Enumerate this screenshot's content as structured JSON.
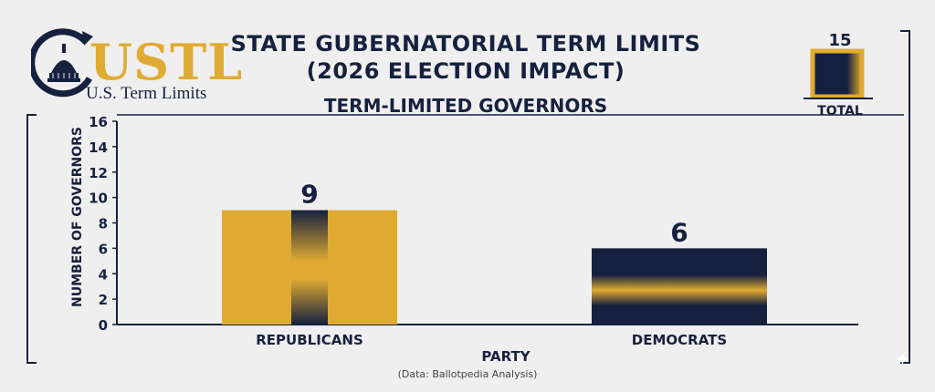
{
  "brand": {
    "logo_text": "USTL",
    "logo_subtitle": "U.S. Term Limits",
    "colors": {
      "gold": "#e0ab33",
      "navy": "#16213f"
    }
  },
  "titles": {
    "line1": "STATE GUBERNATORIAL TERM LIMITS",
    "line2": "(2026 ELECTION IMPACT)",
    "line3": "TERM-LIMITED GOVERNORS"
  },
  "total": {
    "label": "TOTAL",
    "value": 15
  },
  "chart_data": {
    "type": "bar",
    "title": "TERM-LIMITED GOVERNORS",
    "categories": [
      "REPUBLICANS",
      "DEMOCRATS"
    ],
    "values": [
      9,
      6
    ],
    "value_labels": [
      "9",
      "6"
    ],
    "colors": [
      "#e0ab33",
      "#16213f"
    ],
    "xlabel": "PARTY",
    "ylabel": "NUMBER OF GOVERNORS",
    "ylim": [
      0,
      16
    ],
    "yticks": [
      0,
      2,
      4,
      6,
      8,
      10,
      12,
      14,
      16
    ],
    "yticks_labels": [
      "0",
      "2",
      "4",
      "6",
      "8",
      "10",
      "12",
      "14",
      "16"
    ],
    "grid": false
  },
  "source": "(Data: Ballotpedia Analysis)"
}
